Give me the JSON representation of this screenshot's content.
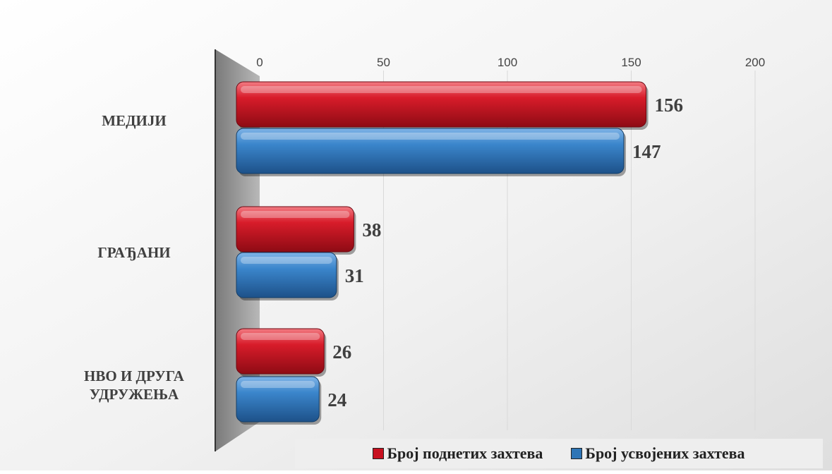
{
  "chart_data": {
    "type": "bar",
    "orientation": "horizontal",
    "categories": [
      "МЕДИЈИ",
      "ГРАЂАНИ",
      "НВО И ДРУГА УДРУЖЕЊА"
    ],
    "series": [
      {
        "name": "Број поднетих захтева",
        "color": "#c8101f",
        "values": [
          156,
          38,
          26
        ]
      },
      {
        "name": "Број усвојених захтева",
        "color": "#2e75b6",
        "values": [
          147,
          31,
          24
        ]
      }
    ],
    "xlim": [
      0,
      200
    ],
    "x_ticks": [
      0,
      50,
      100,
      150,
      200
    ],
    "x_axis_position": "top",
    "grid": true,
    "legend_position": "bottom",
    "data_labels": true
  }
}
